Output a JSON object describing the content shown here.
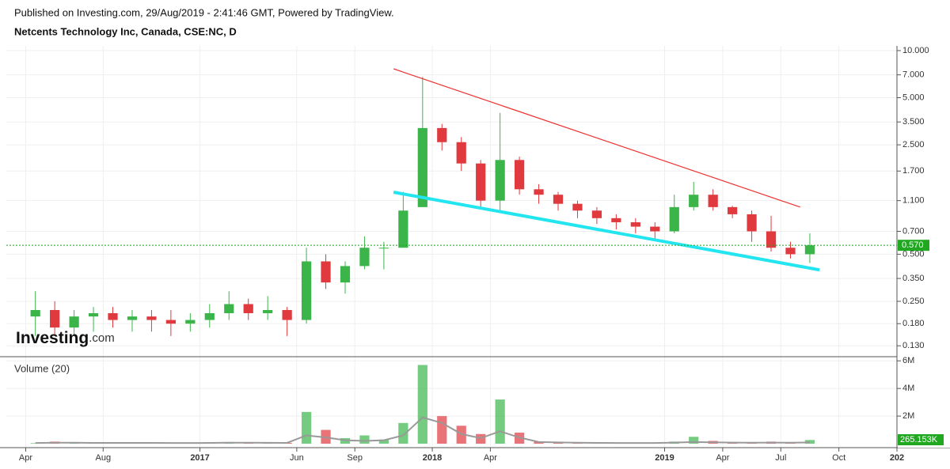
{
  "header": {
    "published": "Published on Investing.com, 29/Aug/2019 - 2:41:46 GMT, Powered by TradingView.",
    "instrument": "Netcents Technology Inc, Canada, CSE:NC, D",
    "logo": "Investing",
    "logo_suffix": ".com"
  },
  "chart_data": [
    {
      "type": "candlestick",
      "log": true,
      "grid": true,
      "up_color": "#3bb54a",
      "down_color": "#e0393e",
      "x": [
        "2016-04",
        "2016-05",
        "2016-06",
        "2016-07",
        "2016-08",
        "2016-09",
        "2016-10",
        "2016-11",
        "2016-12",
        "2017-01",
        "2017-02",
        "2017-03",
        "2017-04",
        "2017-05",
        "2017-06",
        "2017-07",
        "2017-08",
        "2017-09",
        "2017-10",
        "2017-11",
        "2017-12",
        "2018-01",
        "2018-02",
        "2018-03",
        "2018-04",
        "2018-05",
        "2018-06",
        "2018-07",
        "2018-08",
        "2018-09",
        "2018-10",
        "2018-11",
        "2018-12",
        "2019-01",
        "2019-02",
        "2019-03",
        "2019-04",
        "2019-05",
        "2019-06",
        "2019-07",
        "2019-08"
      ],
      "open": [
        0.2,
        0.22,
        0.17,
        0.2,
        0.21,
        0.19,
        0.2,
        0.19,
        0.18,
        0.19,
        0.21,
        0.24,
        0.21,
        0.22,
        0.19,
        0.45,
        0.33,
        0.42,
        0.55,
        0.55,
        1.0,
        3.2,
        2.6,
        1.9,
        1.1,
        2.0,
        1.3,
        1.2,
        1.05,
        0.95,
        0.85,
        0.8,
        0.75,
        0.7,
        1.0,
        1.2,
        1.0,
        0.9,
        0.7,
        0.55,
        0.5
      ],
      "high": [
        0.29,
        0.25,
        0.22,
        0.23,
        0.23,
        0.22,
        0.22,
        0.22,
        0.21,
        0.24,
        0.29,
        0.26,
        0.27,
        0.23,
        0.55,
        0.5,
        0.45,
        0.65,
        0.6,
        1.25,
        6.8,
        3.4,
        2.8,
        2.0,
        4.0,
        2.1,
        1.4,
        1.25,
        1.1,
        1.0,
        0.9,
        0.85,
        0.8,
        1.2,
        1.45,
        1.3,
        1.02,
        0.95,
        0.88,
        0.6,
        0.68
      ],
      "low": [
        0.15,
        0.15,
        0.15,
        0.16,
        0.17,
        0.16,
        0.16,
        0.15,
        0.16,
        0.17,
        0.19,
        0.19,
        0.19,
        0.15,
        0.18,
        0.3,
        0.28,
        0.4,
        0.4,
        0.55,
        1.0,
        2.3,
        1.7,
        1.0,
        0.95,
        1.2,
        1.05,
        0.95,
        0.85,
        0.78,
        0.72,
        0.68,
        0.62,
        0.68,
        0.95,
        0.95,
        0.85,
        0.6,
        0.52,
        0.47,
        0.44
      ],
      "close": [
        0.22,
        0.17,
        0.2,
        0.21,
        0.19,
        0.2,
        0.19,
        0.18,
        0.19,
        0.21,
        0.24,
        0.21,
        0.22,
        0.19,
        0.45,
        0.33,
        0.42,
        0.55,
        0.55,
        0.95,
        3.2,
        2.6,
        1.9,
        1.1,
        2.0,
        1.3,
        1.2,
        1.05,
        0.95,
        0.85,
        0.8,
        0.75,
        0.7,
        1.0,
        1.2,
        1.0,
        0.9,
        0.7,
        0.55,
        0.5,
        0.57
      ],
      "xlim": [
        "2016-03",
        "2020-01"
      ],
      "xticks": [
        {
          "value": "2016-04",
          "label": "Apr"
        },
        {
          "value": "2016-08",
          "label": "Aug"
        },
        {
          "value": "2017-01",
          "label": "2017"
        },
        {
          "value": "2017-06",
          "label": "Jun"
        },
        {
          "value": "2017-09",
          "label": "Sep"
        },
        {
          "value": "2018-01",
          "label": "2018"
        },
        {
          "value": "2018-04",
          "label": "Apr"
        },
        {
          "value": "2019-01",
          "label": "2019"
        },
        {
          "value": "2019-04",
          "label": "Apr"
        },
        {
          "value": "2019-07",
          "label": "Jul"
        },
        {
          "value": "2019-10",
          "label": "Oct"
        },
        {
          "value": "2020-01",
          "label": "202"
        }
      ],
      "ylim": [
        0.112,
        10.72
      ],
      "yticks": [
        {
          "value": 10,
          "label": "10.000"
        },
        {
          "value": 7,
          "label": "7.000"
        },
        {
          "value": 5,
          "label": "5.000"
        },
        {
          "value": 3.5,
          "label": "3.500"
        },
        {
          "value": 2.5,
          "label": "2.500"
        },
        {
          "value": 1.7,
          "label": "1.700"
        },
        {
          "value": 1.1,
          "label": "1.100"
        },
        {
          "value": 0.7,
          "label": "0.700"
        },
        {
          "value": 0.5,
          "label": "0.500"
        },
        {
          "value": 0.35,
          "label": "0.350"
        },
        {
          "value": 0.25,
          "label": "0.250"
        },
        {
          "value": 0.18,
          "label": "0.180"
        },
        {
          "value": 0.13,
          "label": "0.130"
        }
      ],
      "last_price": {
        "value": 0.57,
        "label": "0.570",
        "color": "#21a821"
      },
      "trend_lines": [
        {
          "color": "#f03030",
          "x": [
            "2017-11",
            "2019-08"
          ],
          "values": [
            7.65,
            1.0
          ]
        },
        {
          "color": "#22e5f0",
          "x": [
            "2017-11",
            "2019-09"
          ],
          "values": [
            1.245,
            0.397
          ]
        }
      ]
    },
    {
      "type": "volume",
      "title": "Volume (20)",
      "grid": true,
      "ma_color": "#999999",
      "values": [
        40000,
        150000,
        60000,
        50000,
        80000,
        40000,
        60000,
        50000,
        40000,
        60000,
        120000,
        50000,
        70000,
        60000,
        2300000,
        1000000,
        400000,
        600000,
        300000,
        1500000,
        5700000,
        2000000,
        1300000,
        700000,
        3200000,
        800000,
        150000,
        100000,
        80000,
        60000,
        50000,
        60000,
        50000,
        150000,
        500000,
        200000,
        120000,
        100000,
        150000,
        80000,
        265153
      ],
      "ma": [
        50000,
        70000,
        70000,
        60000,
        60000,
        60000,
        55000,
        50000,
        50000,
        55000,
        70000,
        70000,
        65000,
        60000,
        600000,
        450000,
        250000,
        200000,
        250000,
        600000,
        1900000,
        1500000,
        700000,
        400000,
        900000,
        450000,
        120000,
        90000,
        70000,
        60000,
        50000,
        50000,
        50000,
        80000,
        120000,
        100000,
        80000,
        70000,
        80000,
        70000,
        90000
      ],
      "ylim": [
        0,
        6300000
      ],
      "yticks": [
        {
          "value": 6000000,
          "label": "6M"
        },
        {
          "value": 4000000,
          "label": "4M"
        },
        {
          "value": 2000000,
          "label": "2M"
        }
      ],
      "last_volume": {
        "value": 265153,
        "label": "265.153K",
        "color": "#21a821"
      }
    }
  ]
}
